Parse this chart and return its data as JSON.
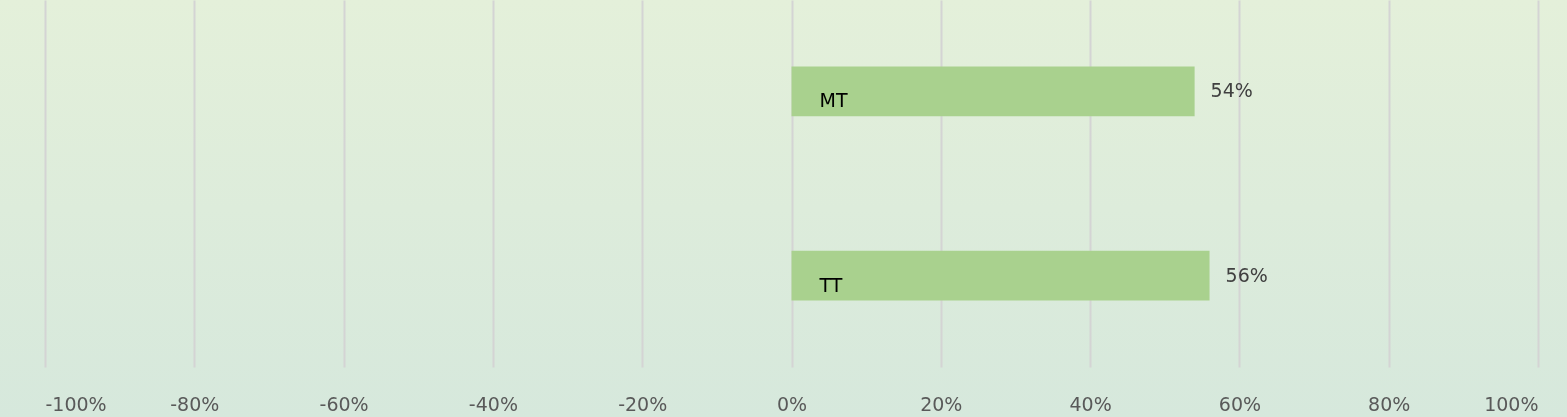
{
  "chart_data": {
    "type": "bar",
    "orientation": "horizontal",
    "categories": [
      "MT",
      "TT"
    ],
    "values": [
      54,
      56
    ],
    "value_labels": [
      "54%",
      "56%"
    ],
    "color": "#a9d18e",
    "xlim": [
      -100,
      100
    ],
    "xticks": [
      {
        "value": -100,
        "label": "-100%"
      },
      {
        "value": -80,
        "label": "-80%"
      },
      {
        "value": -60,
        "label": "-60%"
      },
      {
        "value": -40,
        "label": "-40%"
      },
      {
        "value": -20,
        "label": "-20%"
      },
      {
        "value": 0,
        "label": "0%"
      },
      {
        "value": 20,
        "label": "20%"
      },
      {
        "value": 40,
        "label": "40%"
      },
      {
        "value": 60,
        "label": "60%"
      },
      {
        "value": 80,
        "label": "80%"
      },
      {
        "value": 100,
        "label": "100%"
      }
    ],
    "grid": "x"
  }
}
